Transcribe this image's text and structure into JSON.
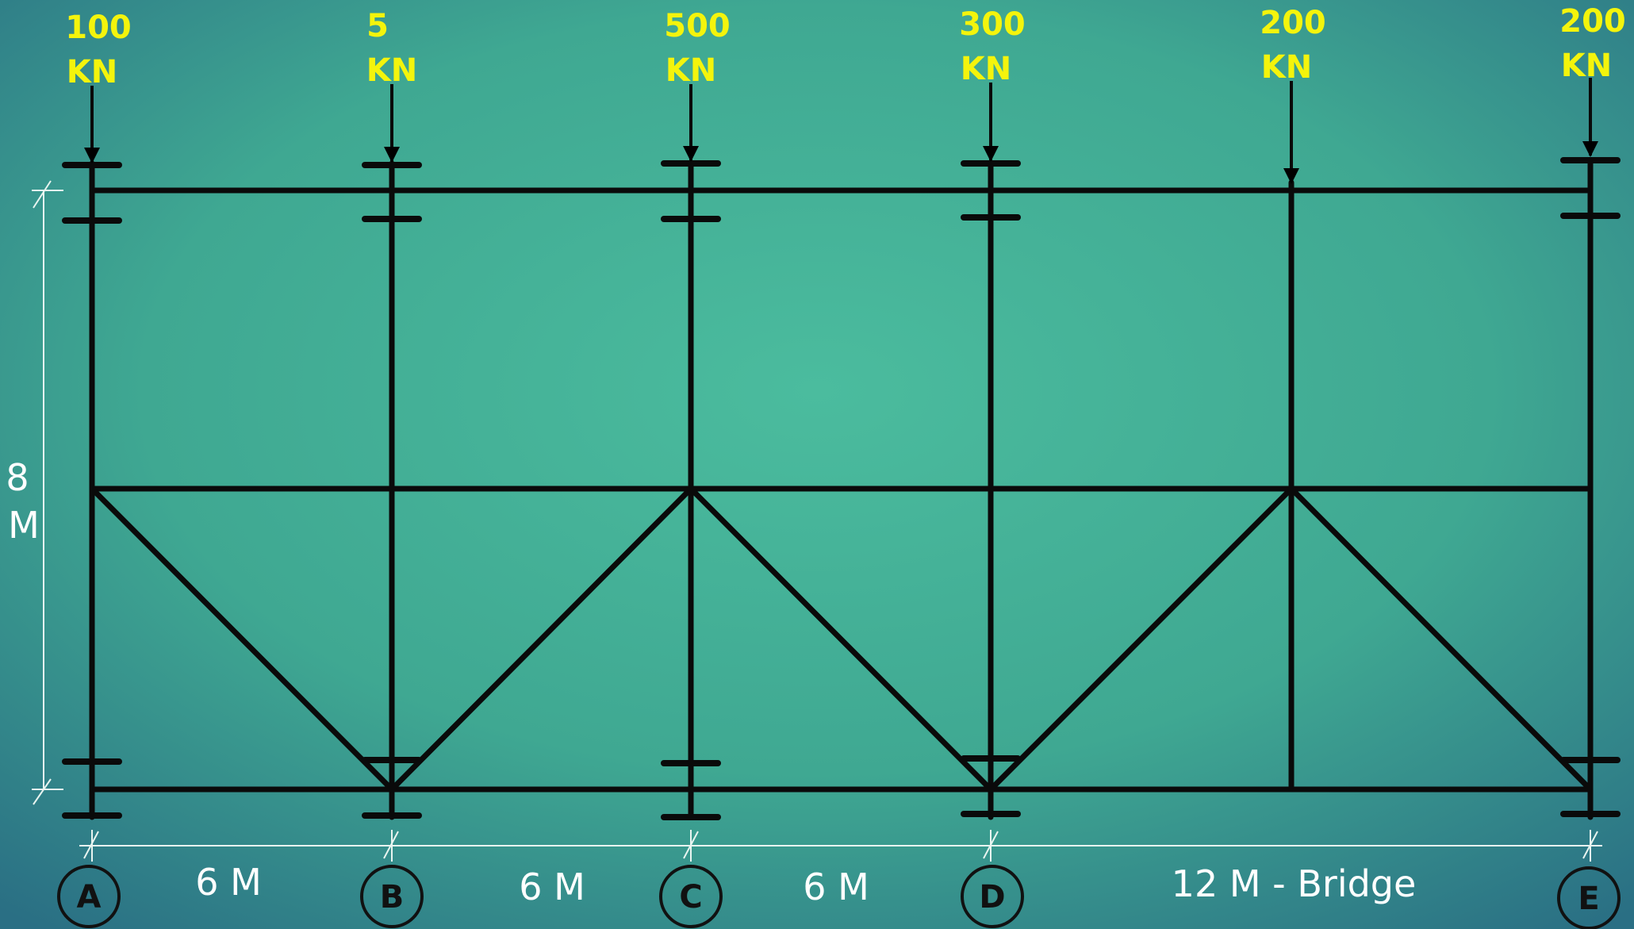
{
  "diagram": {
    "height_label_value": "8",
    "height_label_unit": "M",
    "loads": [
      {
        "value": "100",
        "unit": "KN"
      },
      {
        "value": "5",
        "unit": "KN"
      },
      {
        "value": "500",
        "unit": "KN"
      },
      {
        "value": "300",
        "unit": "KN"
      },
      {
        "value": "200",
        "unit": "KN"
      },
      {
        "value": "200",
        "unit": "KN"
      }
    ],
    "grid_labels": [
      "A",
      "B",
      "C",
      "D",
      "E"
    ],
    "spans": [
      "6 M",
      "6 M",
      "6 M",
      "12 M - Bridge"
    ]
  }
}
